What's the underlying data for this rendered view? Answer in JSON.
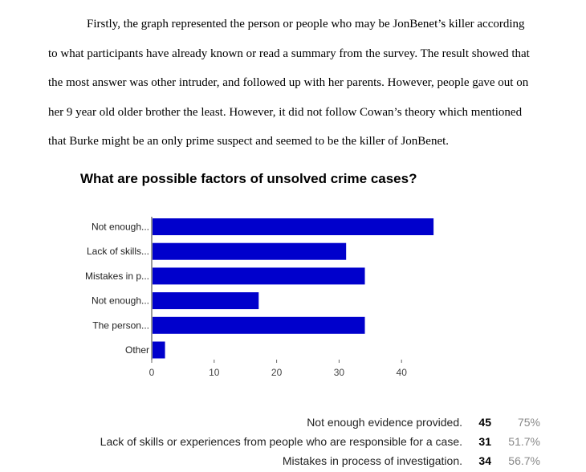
{
  "document": {
    "paragraph_lines": [
      "Firstly, the graph represented the person or people who may be JonBenet’s killer according",
      "to what participants have already known or read a summary from the survey. The result showed that",
      "the most answer was other intruder, and followed up with her parents. However, people gave out on",
      "her 9 year old older brother the least. However, it did not follow Cowan’s theory which mentioned",
      "that Burke might be an only prime suspect and seemed to be the killer of JonBenet."
    ]
  },
  "chart_data": {
    "type": "bar",
    "orientation": "horizontal",
    "title": "What are possible factors of unsolved crime cases?",
    "categories": [
      "Not enough...",
      "Lack of skills...",
      "Mistakes in p...",
      "Not enough...",
      "The person...",
      "Other"
    ],
    "values": [
      45,
      31,
      34,
      17,
      34,
      2
    ],
    "xticks": [
      0,
      10,
      20,
      30,
      40
    ],
    "xlim": [
      0,
      46
    ],
    "bar_color": "#0000cc",
    "grid": false,
    "legend": "none"
  },
  "summary": {
    "rows": [
      {
        "label": "Not enough evidence provided.",
        "count": "45",
        "percent": "75%"
      },
      {
        "label": "Lack of skills or experiences from people who are responsible for a case.",
        "count": "31",
        "percent": "51.7%"
      },
      {
        "label": "Mistakes in process of investigation.",
        "count": "34",
        "percent": "56.7%"
      }
    ]
  }
}
